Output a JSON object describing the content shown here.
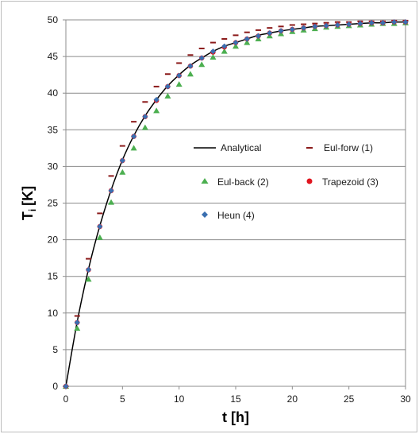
{
  "chart_data": {
    "type": "scatter",
    "xlabel": "t [h]",
    "ylabel": "T",
    "ylabel_sub": "i",
    "ylabel_unit": "[K]",
    "xlim": [
      0,
      30
    ],
    "ylim": [
      0,
      50
    ],
    "xticks": [
      0,
      5,
      10,
      15,
      20,
      25,
      30
    ],
    "yticks": [
      0,
      5,
      10,
      15,
      20,
      25,
      30,
      35,
      40,
      45,
      50
    ],
    "grid": "horizontal",
    "legend_position": "center-right",
    "analytical": {
      "name": "Analytical",
      "color": "#000000",
      "x": [
        0,
        1,
        2,
        3,
        4,
        5,
        6,
        7,
        8,
        9,
        10,
        11,
        12,
        13,
        14,
        15,
        16,
        17,
        18,
        19,
        20,
        21,
        22,
        23,
        24,
        25,
        26,
        27,
        28,
        29,
        30
      ],
      "y": [
        0,
        8.8,
        16.0,
        21.9,
        26.8,
        30.9,
        34.2,
        36.9,
        39.1,
        41.0,
        42.5,
        43.8,
        44.8,
        45.7,
        46.4,
        46.9,
        47.4,
        47.9,
        48.2,
        48.5,
        48.7,
        48.9,
        49.1,
        49.2,
        49.3,
        49.4,
        49.5,
        49.6,
        49.6,
        49.7,
        49.7
      ]
    },
    "series": [
      {
        "name": "Eul-forw (1)",
        "marker": "dash",
        "color": "#8b1a1a",
        "x": [
          0,
          1,
          2,
          3,
          4,
          5,
          6,
          7,
          8,
          9,
          10,
          11,
          12,
          13,
          14,
          15,
          16,
          17,
          18,
          19,
          20,
          21,
          22,
          23,
          24,
          25,
          26,
          27,
          28,
          29,
          30
        ],
        "y": [
          0,
          9.6,
          17.4,
          23.6,
          28.7,
          32.8,
          36.1,
          38.8,
          40.9,
          42.6,
          44.1,
          45.2,
          46.1,
          46.9,
          47.4,
          47.9,
          48.3,
          48.6,
          48.9,
          49.1,
          49.3,
          49.4,
          49.5,
          49.6,
          49.7,
          49.7,
          49.8,
          49.8,
          49.8,
          49.9,
          49.9
        ]
      },
      {
        "name": "Eul-back (2)",
        "marker": "triangle",
        "color": "#4caf50",
        "x": [
          0,
          1,
          2,
          3,
          4,
          5,
          6,
          7,
          8,
          9,
          10,
          11,
          12,
          13,
          14,
          15,
          16,
          17,
          18,
          19,
          20,
          21,
          22,
          23,
          24,
          25,
          26,
          27,
          28,
          29,
          30
        ],
        "y": [
          0,
          7.9,
          14.6,
          20.3,
          25.1,
          29.2,
          32.5,
          35.3,
          37.6,
          39.6,
          41.2,
          42.6,
          43.9,
          44.9,
          45.7,
          46.4,
          46.9,
          47.4,
          47.8,
          48.1,
          48.4,
          48.6,
          48.8,
          49.0,
          49.1,
          49.2,
          49.3,
          49.4,
          49.5,
          49.5,
          49.6
        ]
      },
      {
        "name": "Trapezoid (3)",
        "marker": "circle",
        "color": "#e0141e",
        "x": [
          0,
          1,
          2,
          3,
          4,
          5,
          6,
          7,
          8,
          9,
          10,
          11,
          12,
          13,
          14,
          15,
          16,
          17,
          18,
          19,
          20,
          21,
          22,
          23,
          24,
          25,
          26,
          27,
          28,
          29,
          30
        ],
        "y": [
          0,
          8.7,
          15.9,
          21.8,
          26.7,
          30.8,
          34.1,
          36.8,
          39.0,
          40.9,
          42.4,
          43.7,
          44.8,
          45.6,
          46.3,
          46.9,
          47.4,
          47.8,
          48.2,
          48.5,
          48.7,
          48.9,
          49.1,
          49.2,
          49.3,
          49.4,
          49.5,
          49.6,
          49.6,
          49.7,
          49.7
        ]
      },
      {
        "name": "Heun (4)",
        "marker": "diamond",
        "color": "#3a6fb0",
        "x": [
          0,
          1,
          2,
          3,
          4,
          5,
          6,
          7,
          8,
          9,
          10,
          11,
          12,
          13,
          14,
          15,
          16,
          17,
          18,
          19,
          20,
          21,
          22,
          23,
          24,
          25,
          26,
          27,
          28,
          29,
          30
        ],
        "y": [
          0,
          8.7,
          15.9,
          21.8,
          26.7,
          30.8,
          34.1,
          36.8,
          39.1,
          40.9,
          42.4,
          43.7,
          44.8,
          45.7,
          46.4,
          46.9,
          47.4,
          47.8,
          48.2,
          48.5,
          48.7,
          48.9,
          49.1,
          49.2,
          49.3,
          49.4,
          49.5,
          49.6,
          49.6,
          49.7,
          49.7
        ]
      }
    ]
  }
}
